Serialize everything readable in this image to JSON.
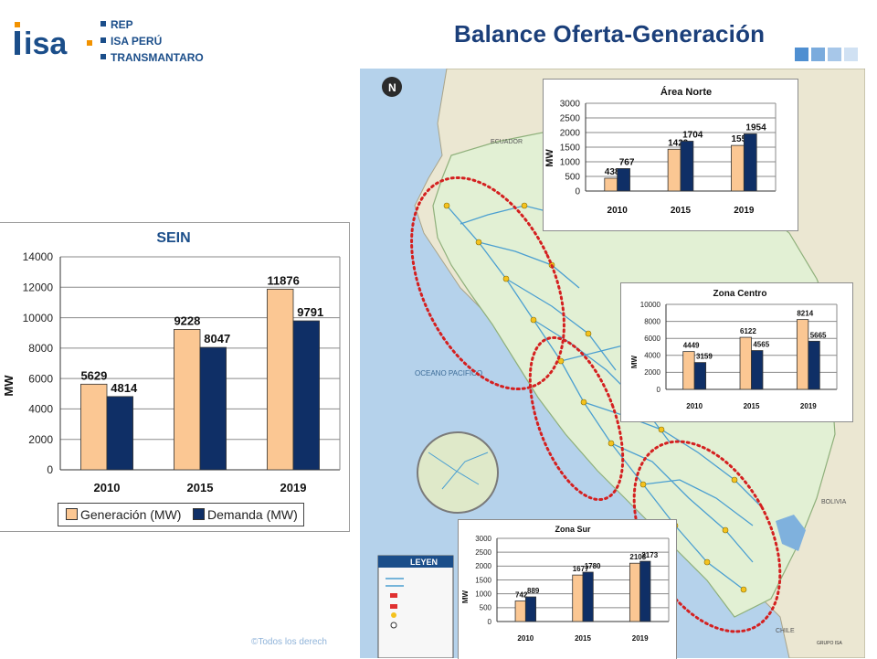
{
  "header": {
    "logo_text": "isa",
    "brand_items": [
      "REP",
      "ISA PERÚ",
      "TRANSMANTARO"
    ],
    "title": "Balance Oferta-Generación"
  },
  "colors": {
    "brand_blue": "#1b4e8a",
    "title_blue": "#1b3f7a",
    "generacion": "#fbc793",
    "demanda": "#0f2f66",
    "ellipse": "#d42020",
    "sea": "#b5d2eb",
    "land": "#ebe7d2"
  },
  "map_labels": {
    "country_north": "ECUADOR",
    "country_east": "BOLIVIA",
    "country_south": "CHILE",
    "ocean": "OCEANO PACIFICO",
    "legend_title": "LEYEN",
    "brand_footer": "GRUPO ISA"
  },
  "footer": {
    "text": "©Todos los derech"
  },
  "chart_data": [
    {
      "id": "sein",
      "type": "bar",
      "title": "SEIN",
      "categories": [
        "2010",
        "2015",
        "2019"
      ],
      "series": [
        {
          "name": "Generación (MW)",
          "values": [
            5629,
            9228,
            11876
          ]
        },
        {
          "name": "Demanda (MW)",
          "values": [
            4814,
            8047,
            9791
          ]
        }
      ],
      "ylabel": "MW",
      "ylim": [
        0,
        14000
      ],
      "yticks": [
        0,
        2000,
        4000,
        6000,
        8000,
        10000,
        12000,
        14000
      ],
      "grid": true,
      "legend": "bottom"
    },
    {
      "id": "area-norte",
      "type": "bar",
      "title": "Área Norte",
      "categories": [
        "2010",
        "2015",
        "2019"
      ],
      "series": [
        {
          "values": [
            438,
            1429,
            1559
          ]
        },
        {
          "values": [
            767,
            1704,
            1954
          ]
        }
      ],
      "ylabel": "MW",
      "ylim": [
        0,
        3000
      ],
      "yticks": [
        0,
        500,
        1000,
        1500,
        2000,
        2500,
        3000
      ],
      "grid": true
    },
    {
      "id": "zona-centro",
      "type": "bar",
      "title": "Zona Centro",
      "categories": [
        "2010",
        "2015",
        "2019"
      ],
      "series": [
        {
          "values": [
            4449,
            6122,
            8214
          ]
        },
        {
          "values": [
            3159,
            4565,
            5665
          ]
        }
      ],
      "ylabel": "MW",
      "ylim": [
        0,
        10000
      ],
      "yticks": [
        0,
        2000,
        4000,
        6000,
        8000,
        10000
      ],
      "grid": true
    },
    {
      "id": "zona-sur",
      "type": "bar",
      "title": "Zona Sur",
      "categories": [
        "2010",
        "2015",
        "2019"
      ],
      "series": [
        {
          "values": [
            742,
            1677,
            2103
          ]
        },
        {
          "values": [
            889,
            1780,
            2173
          ]
        }
      ],
      "ylabel": "MW",
      "ylim": [
        0,
        3000
      ],
      "yticks": [
        0,
        500,
        1000,
        1500,
        2000,
        2500,
        3000
      ],
      "grid": true
    }
  ]
}
